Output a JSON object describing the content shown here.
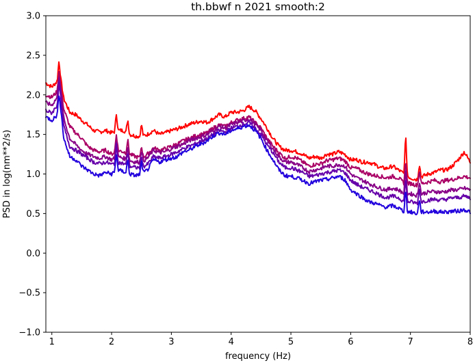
{
  "chart_data": {
    "type": "line",
    "title": "th.bbwf n 2021 smooth:2",
    "xlabel": "frequency (Hz)",
    "ylabel": "PSD in log(nm**2/s)",
    "xlim": [
      0.9,
      8.0
    ],
    "ylim": [
      -1.0,
      3.0
    ],
    "x_ticks": [
      "1",
      "2",
      "3",
      "4",
      "5",
      "6",
      "7",
      "8"
    ],
    "y_ticks": [
      "−1.0",
      "−0.5",
      "0.0",
      "0.5",
      "1.0",
      "1.5",
      "2.0",
      "2.5",
      "3.0"
    ],
    "grid": false,
    "legend": "none",
    "x": [
      0.9,
      1.0,
      1.1,
      1.15,
      1.2,
      1.3,
      1.4,
      1.5,
      1.6,
      1.7,
      1.8,
      1.9,
      2.0,
      2.1,
      2.2,
      2.3,
      2.4,
      2.5,
      2.6,
      2.7,
      2.8,
      2.9,
      3.0,
      3.1,
      3.2,
      3.3,
      3.4,
      3.5,
      3.6,
      3.7,
      3.8,
      3.9,
      4.0,
      4.1,
      4.2,
      4.3,
      4.4,
      4.5,
      4.6,
      4.7,
      4.8,
      4.9,
      5.0,
      5.1,
      5.2,
      5.3,
      5.4,
      5.5,
      5.6,
      5.7,
      5.8,
      5.9,
      6.0,
      6.1,
      6.2,
      6.3,
      6.4,
      6.5,
      6.6,
      6.7,
      6.8,
      6.9,
      7.0,
      7.1,
      7.2,
      7.3,
      7.4,
      7.5,
      7.6,
      7.7,
      7.8,
      7.9,
      8.0
    ],
    "series": [
      {
        "color": "#ff0000",
        "values": [
          2.15,
          2.1,
          2.18,
          2.2,
          1.95,
          1.78,
          1.75,
          1.68,
          1.62,
          1.55,
          1.53,
          1.55,
          1.52,
          1.55,
          1.55,
          1.5,
          1.48,
          1.47,
          1.5,
          1.55,
          1.5,
          1.52,
          1.55,
          1.57,
          1.6,
          1.63,
          1.65,
          1.67,
          1.65,
          1.7,
          1.75,
          1.72,
          1.78,
          1.78,
          1.8,
          1.85,
          1.8,
          1.7,
          1.58,
          1.45,
          1.35,
          1.3,
          1.3,
          1.28,
          1.25,
          1.2,
          1.22,
          1.2,
          1.25,
          1.25,
          1.28,
          1.25,
          1.18,
          1.18,
          1.15,
          1.15,
          1.12,
          1.08,
          1.07,
          1.1,
          1.05,
          1.0,
          0.95,
          0.93,
          0.97,
          1.0,
          1.02,
          1.05,
          1.05,
          1.1,
          1.18,
          1.28,
          1.15
        ]
      },
      {
        "color": "#aa0066",
        "values": [
          2.0,
          1.97,
          2.05,
          2.1,
          1.82,
          1.6,
          1.52,
          1.45,
          1.35,
          1.3,
          1.28,
          1.3,
          1.25,
          1.3,
          1.28,
          1.25,
          1.22,
          1.2,
          1.25,
          1.33,
          1.3,
          1.32,
          1.35,
          1.38,
          1.42,
          1.45,
          1.48,
          1.5,
          1.52,
          1.58,
          1.62,
          1.6,
          1.65,
          1.68,
          1.7,
          1.72,
          1.65,
          1.58,
          1.45,
          1.35,
          1.27,
          1.2,
          1.22,
          1.2,
          1.15,
          1.1,
          1.12,
          1.13,
          1.17,
          1.18,
          1.2,
          1.17,
          1.08,
          1.07,
          1.03,
          1.0,
          0.98,
          0.97,
          0.95,
          0.97,
          0.95,
          0.88,
          0.88,
          0.86,
          0.88,
          0.9,
          0.92,
          0.9,
          0.92,
          0.93,
          0.95,
          0.97,
          0.95
        ]
      },
      {
        "color": "#880088",
        "values": [
          1.9,
          1.87,
          1.98,
          2.05,
          1.7,
          1.45,
          1.37,
          1.3,
          1.25,
          1.22,
          1.2,
          1.22,
          1.18,
          1.22,
          1.2,
          1.17,
          1.15,
          1.15,
          1.2,
          1.3,
          1.27,
          1.28,
          1.32,
          1.35,
          1.38,
          1.42,
          1.45,
          1.47,
          1.5,
          1.55,
          1.6,
          1.58,
          1.62,
          1.65,
          1.67,
          1.7,
          1.63,
          1.55,
          1.42,
          1.32,
          1.22,
          1.15,
          1.15,
          1.12,
          1.08,
          1.03,
          1.05,
          1.07,
          1.1,
          1.1,
          1.12,
          1.1,
          1.0,
          0.95,
          0.92,
          0.88,
          0.85,
          0.82,
          0.8,
          0.82,
          0.8,
          0.75,
          0.75,
          0.73,
          0.75,
          0.77,
          0.78,
          0.77,
          0.78,
          0.8,
          0.8,
          0.82,
          0.8
        ]
      },
      {
        "color": "#6600aa",
        "values": [
          1.8,
          1.77,
          1.88,
          1.95,
          1.6,
          1.35,
          1.3,
          1.25,
          1.2,
          1.15,
          1.13,
          1.15,
          1.12,
          1.15,
          1.13,
          1.1,
          1.08,
          1.08,
          1.12,
          1.22,
          1.2,
          1.22,
          1.25,
          1.28,
          1.32,
          1.35,
          1.38,
          1.42,
          1.45,
          1.5,
          1.55,
          1.53,
          1.58,
          1.6,
          1.63,
          1.65,
          1.58,
          1.5,
          1.37,
          1.27,
          1.15,
          1.08,
          1.08,
          1.05,
          1.02,
          0.97,
          0.98,
          1.0,
          1.02,
          1.03,
          1.05,
          1.02,
          0.92,
          0.87,
          0.83,
          0.8,
          0.77,
          0.73,
          0.7,
          0.72,
          0.7,
          0.65,
          0.65,
          0.63,
          0.65,
          0.67,
          0.68,
          0.67,
          0.68,
          0.7,
          0.7,
          0.72,
          0.7
        ]
      },
      {
        "color": "#2200dd",
        "values": [
          1.72,
          1.68,
          1.75,
          1.82,
          1.45,
          1.22,
          1.18,
          1.1,
          1.05,
          1.0,
          0.98,
          1.02,
          1.0,
          1.05,
          1.03,
          1.0,
          0.98,
          1.0,
          1.05,
          1.18,
          1.15,
          1.18,
          1.2,
          1.22,
          1.28,
          1.3,
          1.35,
          1.38,
          1.42,
          1.48,
          1.52,
          1.5,
          1.55,
          1.57,
          1.6,
          1.62,
          1.55,
          1.45,
          1.3,
          1.18,
          1.05,
          0.98,
          0.97,
          0.95,
          0.92,
          0.88,
          0.9,
          0.92,
          0.93,
          0.95,
          0.97,
          0.93,
          0.8,
          0.75,
          0.7,
          0.65,
          0.63,
          0.6,
          0.58,
          0.6,
          0.57,
          0.52,
          0.52,
          0.5,
          0.52,
          0.52,
          0.53,
          0.52,
          0.52,
          0.53,
          0.53,
          0.55,
          0.52
        ]
      }
    ],
    "spikes": [
      {
        "x": 1.12,
        "height": 0.25
      },
      {
        "x": 2.08,
        "height": 0.22
      },
      {
        "x": 2.27,
        "height": 0.18
      },
      {
        "x": 2.5,
        "height": 0.16
      },
      {
        "x": 6.92,
        "height": 0.5
      },
      {
        "x": 7.15,
        "height": 0.18
      }
    ]
  }
}
